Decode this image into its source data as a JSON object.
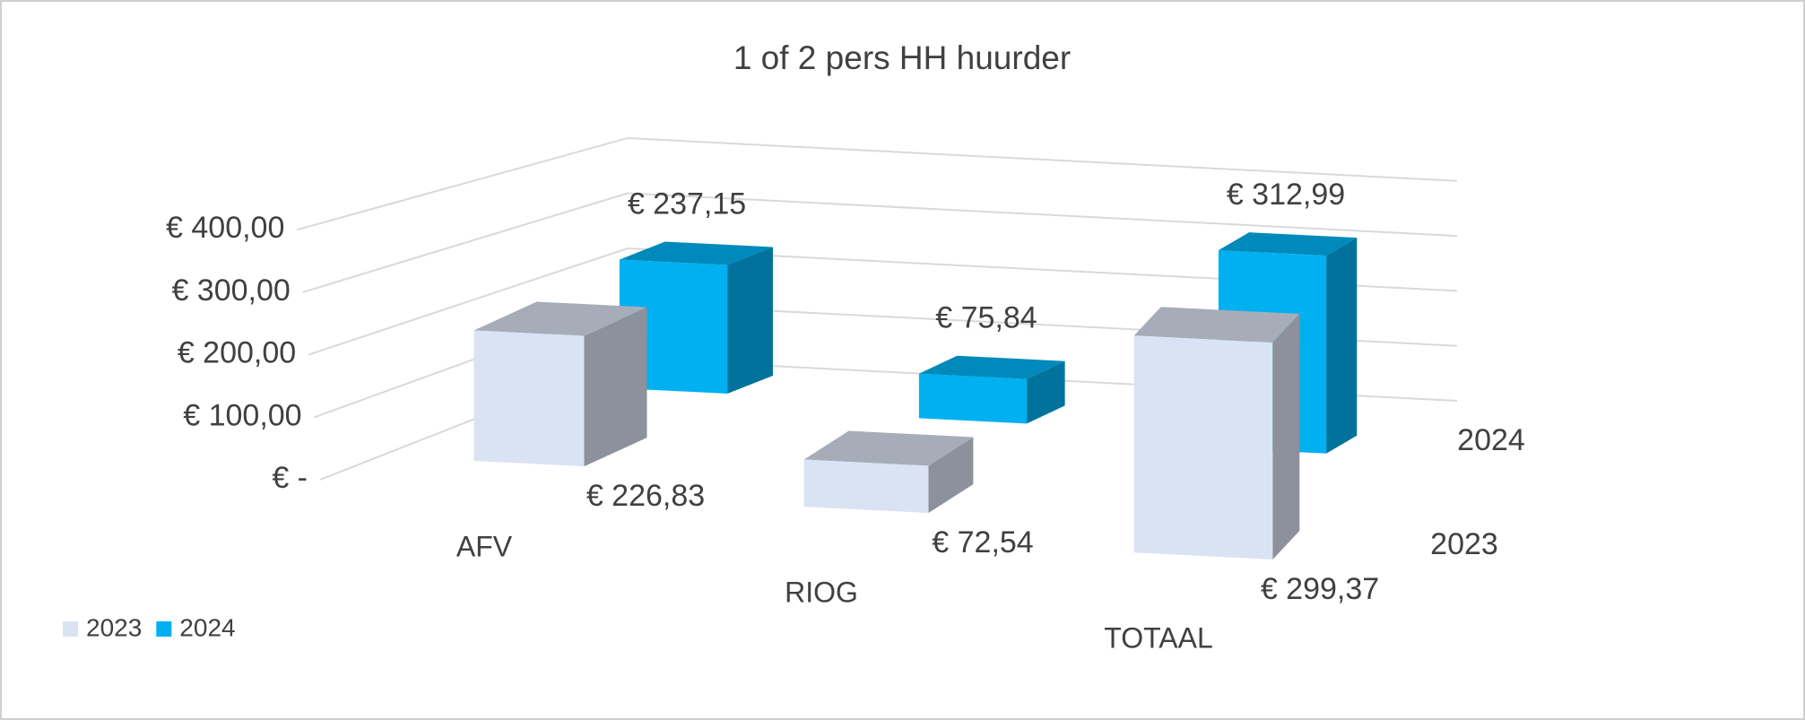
{
  "chart_data": {
    "type": "bar3d",
    "title": "1 of 2 pers HH huurder",
    "categories": [
      "AFV",
      "RIOG",
      "TOTAAL"
    ],
    "series": [
      {
        "name": "2023",
        "color": "#dae3f3",
        "values": [
          226.83,
          72.54,
          299.37
        ],
        "value_labels": [
          "€ 226,83",
          "€ 72,54",
          "€ 299,37"
        ]
      },
      {
        "name": "2024",
        "color": "#00b0f0",
        "values": [
          237.15,
          75.84,
          312.99
        ],
        "value_labels": [
          "€ 237,15",
          "€ 75,84",
          "€ 312,99"
        ]
      }
    ],
    "ylim": [
      0,
      400
    ],
    "yticks": [
      {
        "value": 0,
        "label": "€ -"
      },
      {
        "value": 100,
        "label": "€ 100,00"
      },
      {
        "value": 200,
        "label": "€ 200,00"
      },
      {
        "value": 300,
        "label": "€ 300,00"
      },
      {
        "value": 400,
        "label": "€ 400,00"
      }
    ],
    "grid": true,
    "legend": "bottom-left"
  }
}
